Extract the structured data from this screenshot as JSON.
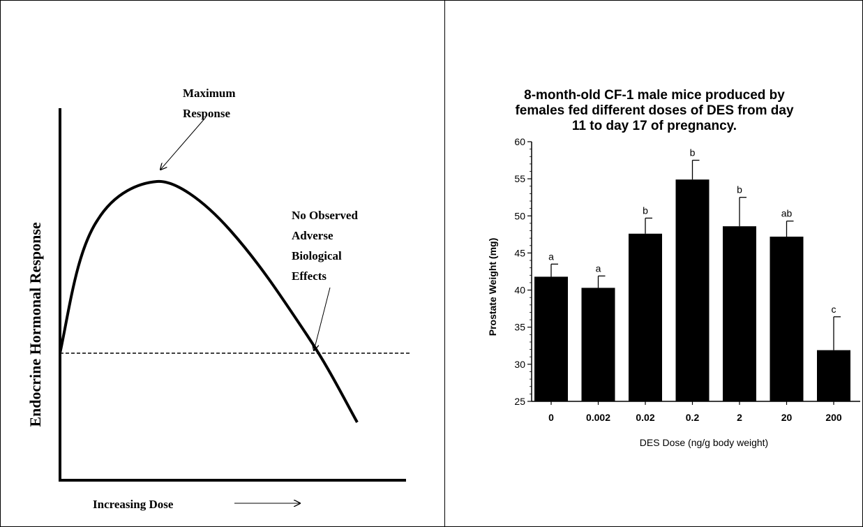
{
  "panels": {
    "left": {
      "ylabel": "Endocrine Hormonal Response",
      "xlabel": "Increasing Dose",
      "annotation_max": [
        "Maximum",
        "Response"
      ],
      "annotation_noael": [
        "No Observed",
        "Adverse",
        "Biological",
        "Effects"
      ]
    },
    "right": {
      "title_lines": [
        "8-month-old CF-1 male mice produced by",
        "females fed different doses of DES from day",
        "11 to day 17 of pregnancy."
      ]
    }
  },
  "chart_data": [
    {
      "type": "line",
      "title": "",
      "xlabel": "Increasing Dose",
      "ylabel": "Endocrine Hormonal Response",
      "axis_ticks": false,
      "series": [
        {
          "style": "solid",
          "shape": "inverted-U dose-response curve",
          "x": [
            0,
            0.1,
            0.2,
            0.3,
            0.4,
            0.5,
            0.6,
            0.7,
            0.8,
            0.9,
            1.0
          ],
          "y": [
            0.42,
            0.68,
            0.78,
            0.8,
            0.76,
            0.67,
            0.56,
            0.45,
            0.34,
            0.21,
            0.1
          ]
        },
        {
          "style": "dashed",
          "shape": "baseline",
          "x": [
            0,
            1.0
          ],
          "y": [
            0.42,
            0.42
          ]
        }
      ],
      "annotations": [
        "Maximum Response",
        "No Observed Adverse Biological Effects"
      ]
    },
    {
      "type": "bar",
      "title": "8-month-old CF-1 male mice produced by females fed different doses of DES from day 11 to day 17 of pregnancy.",
      "xlabel": "DES Dose (ng/g body weight)",
      "ylabel": "Prostate Weight (mg)",
      "categories": [
        "0",
        "0.002",
        "0.02",
        "0.2",
        "2",
        "20",
        "200"
      ],
      "values": [
        41.8,
        40.3,
        47.6,
        54.9,
        48.6,
        47.2,
        31.9
      ],
      "error_upper": [
        43.5,
        41.9,
        49.7,
        57.5,
        52.5,
        49.3,
        36.4
      ],
      "letters": [
        "a",
        "a",
        "b",
        "b",
        "b",
        "ab",
        "c"
      ],
      "ylim": [
        25,
        60
      ],
      "yticks": [
        25,
        30,
        35,
        40,
        45,
        50,
        55,
        60
      ],
      "bar_color": "#000000"
    }
  ]
}
